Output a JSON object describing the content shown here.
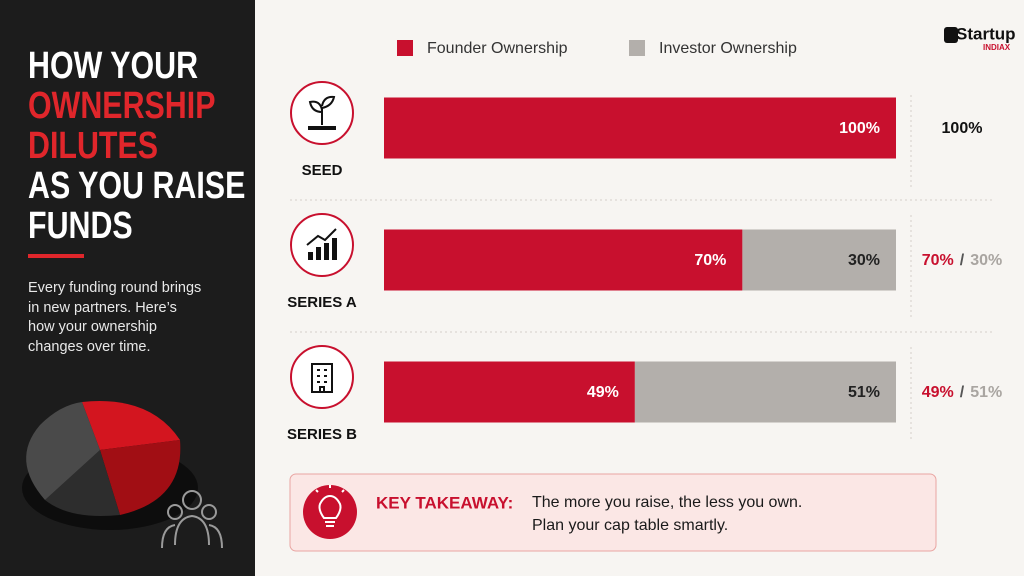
{
  "sidebar": {
    "title_lines": [
      {
        "text": "HOW YOUR",
        "color": "#ffffff"
      },
      {
        "text": "OWNERSHIP",
        "color": "#e0262b"
      },
      {
        "text": "DILUTES",
        "color": "#e0262b"
      },
      {
        "text": "AS YOU RAISE",
        "color": "#ffffff"
      },
      {
        "text": "FUNDS",
        "color": "#ffffff"
      }
    ],
    "description": "Every funding round brings in new partners. Here’s how your ownership changes over time."
  },
  "logo": {
    "name": "Startup",
    "sub": "INDIAX"
  },
  "chart_data": {
    "type": "bar",
    "orientation": "horizontal",
    "stacked": true,
    "categories": [
      "SEED",
      "SERIES A",
      "SERIES B"
    ],
    "xlim": [
      0,
      100
    ],
    "label_separator": "/",
    "series": [
      {
        "name": "Founder Ownership",
        "color": "#c8102e",
        "values": [
          100,
          70,
          49
        ],
        "value_labels": [
          "100%",
          "70%",
          "49%"
        ]
      },
      {
        "name": "Investor Ownership",
        "color": "#b3afab",
        "values": [
          0,
          30,
          51
        ],
        "value_labels": [
          null,
          "30%",
          "51%"
        ]
      }
    ]
  },
  "takeaway": {
    "label": "KEY TAKEAWAY:",
    "lines": [
      "The more you raise, the less you own.",
      "Plan your cap table smartly."
    ]
  }
}
